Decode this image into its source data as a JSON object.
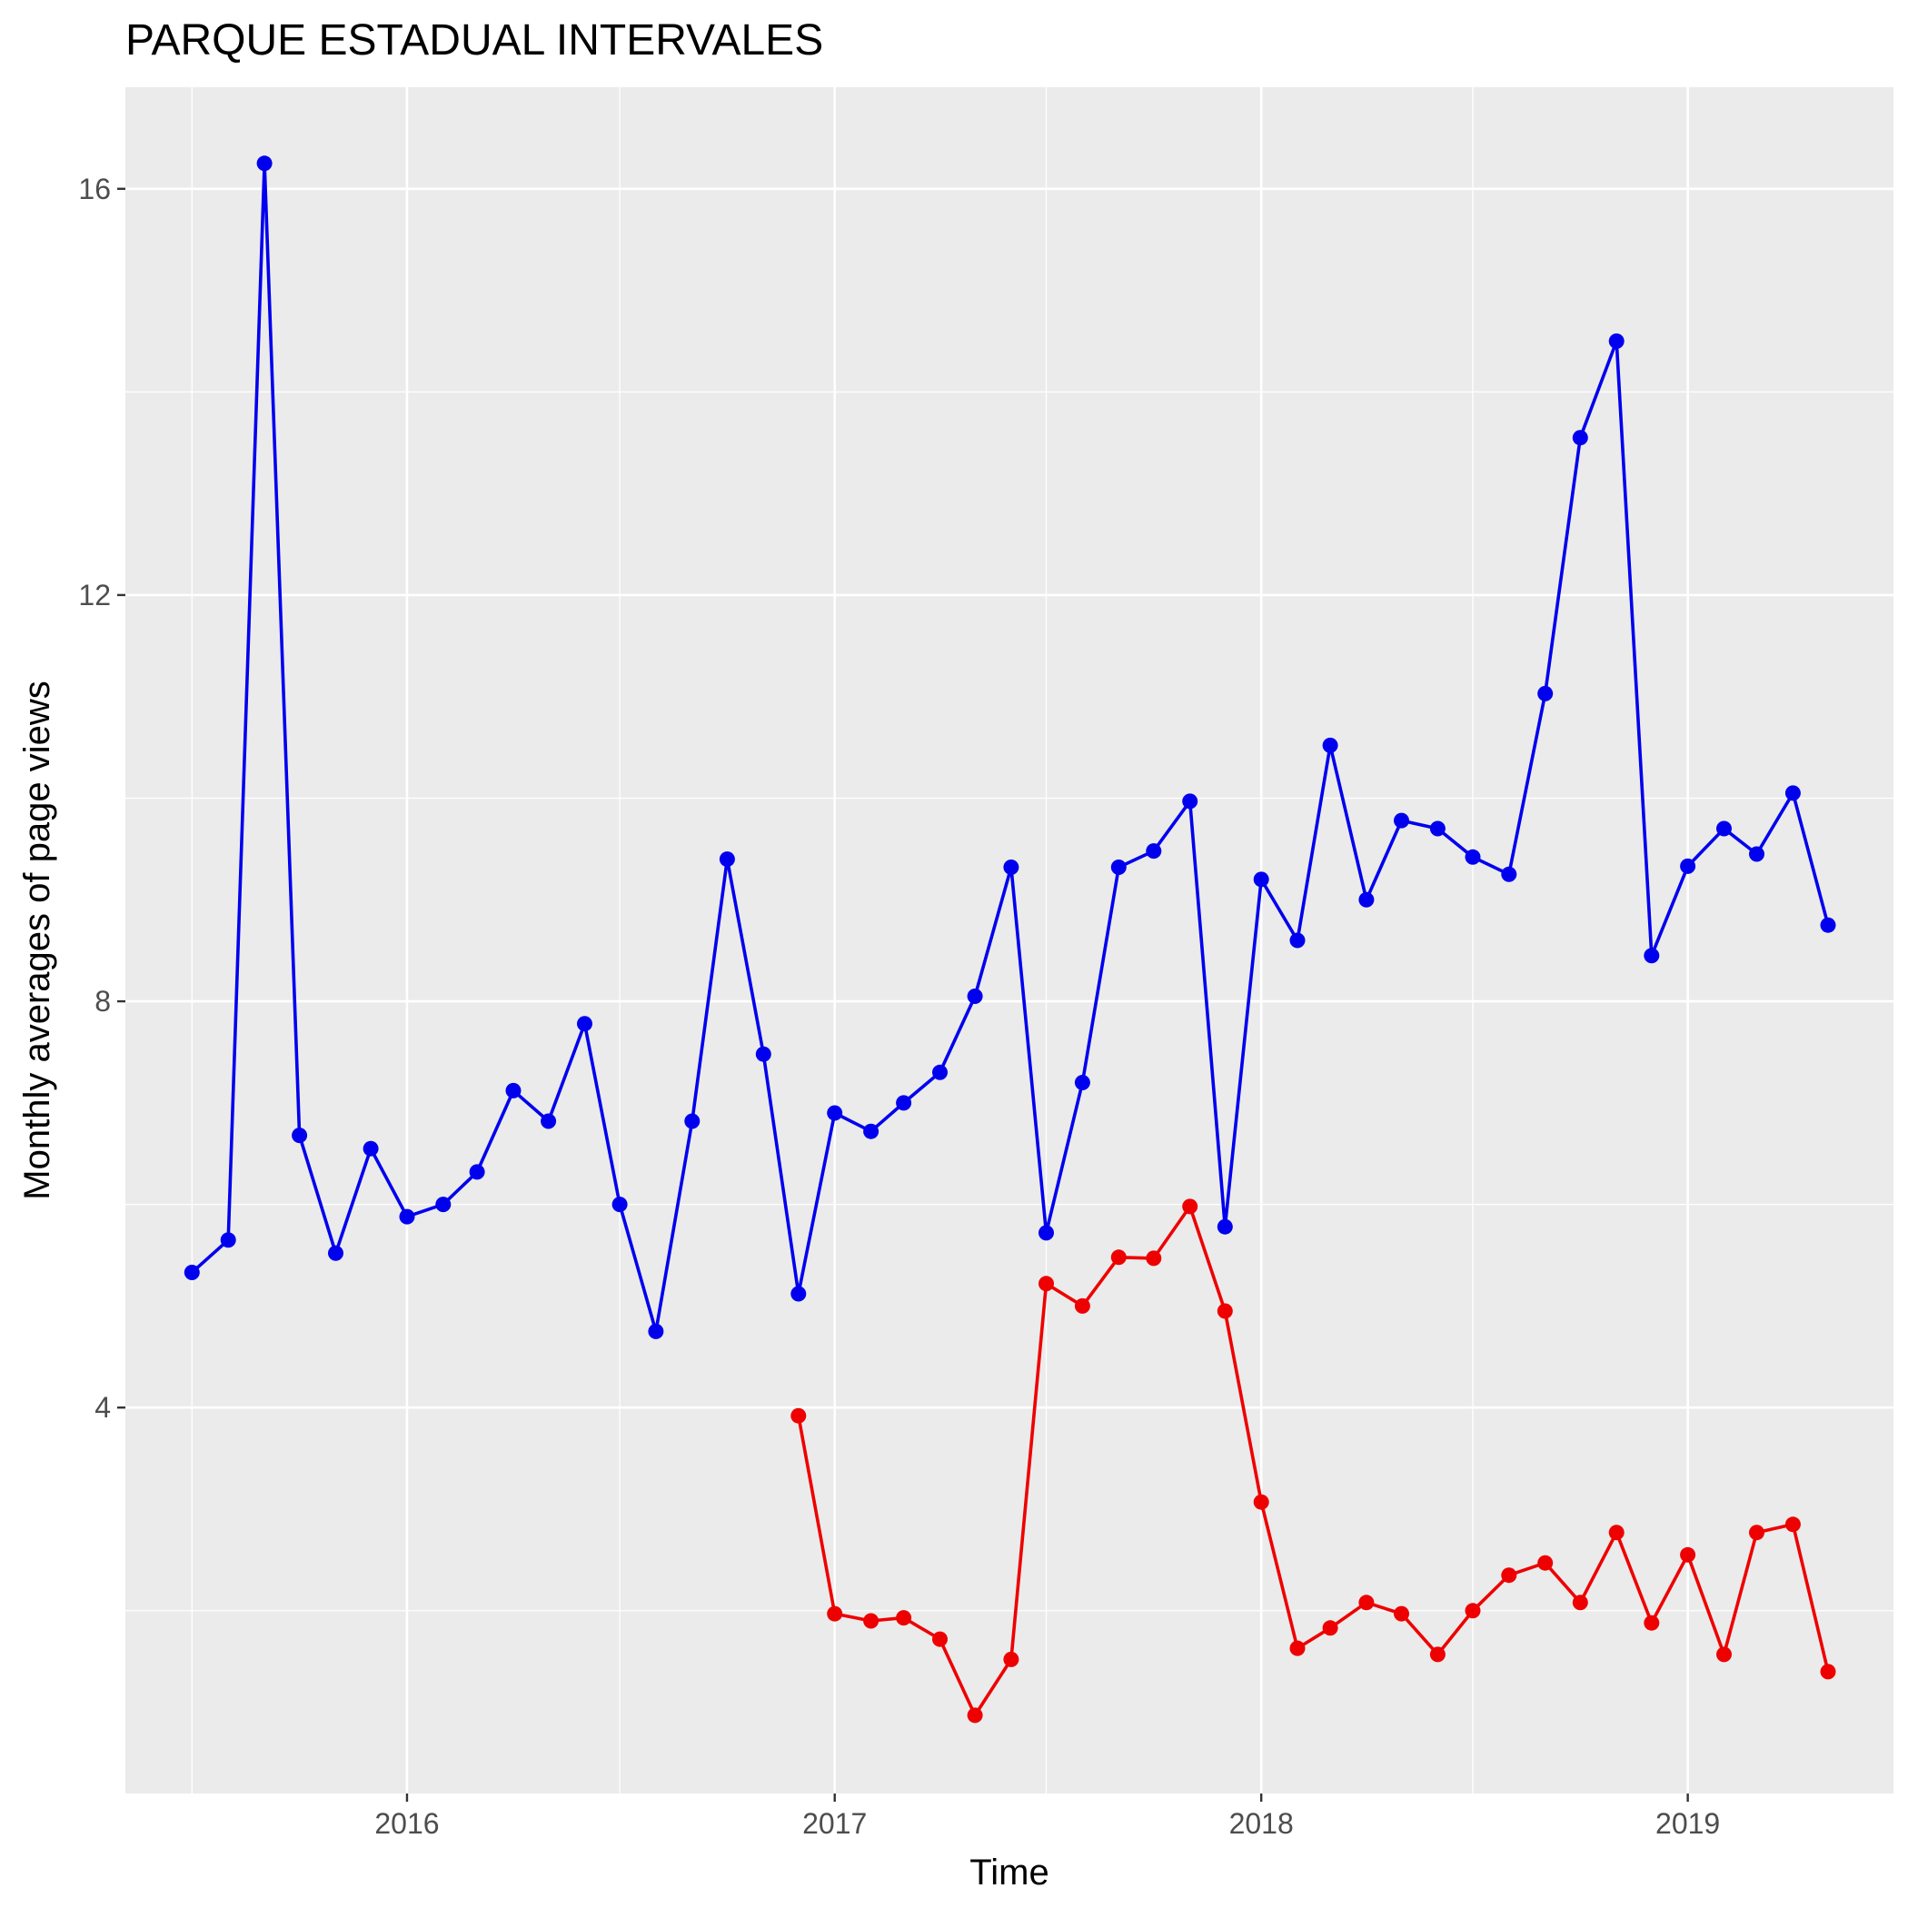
{
  "chart_data": {
    "type": "line",
    "title": "PARQUE ESTADUAL INTERVALES",
    "xlabel": "Time",
    "ylabel": "Monthly averages of page views",
    "x_ticks": [
      "2016",
      "2017",
      "2018",
      "2019"
    ],
    "y_ticks": [
      "4",
      "8",
      "12",
      "16"
    ],
    "x_range": [
      "2015-05-05",
      "2019-06-26"
    ],
    "ylim": [
      0.2,
      17.0
    ],
    "grid": true,
    "legend": "none",
    "colors": {
      "panel": "#ebebeb",
      "grid": "#ffffff",
      "axis_text": "#4d4d4d"
    },
    "series": [
      {
        "color": "#0000ee",
        "x": [
          "2015-07-01",
          "2015-08-01",
          "2015-09-01",
          "2015-10-01",
          "2015-11-01",
          "2015-12-01",
          "2016-01-01",
          "2016-02-01",
          "2016-03-01",
          "2016-04-01",
          "2016-05-01",
          "2016-06-01",
          "2016-07-01",
          "2016-08-01",
          "2016-09-01",
          "2016-10-01",
          "2016-11-01",
          "2016-12-01",
          "2017-01-01",
          "2017-02-01",
          "2017-03-01",
          "2017-04-01",
          "2017-05-01",
          "2017-06-01",
          "2017-07-01",
          "2017-08-01",
          "2017-09-01",
          "2017-10-01",
          "2017-11-01",
          "2017-12-01",
          "2018-01-01",
          "2018-02-01",
          "2018-03-01",
          "2018-04-01",
          "2018-05-01",
          "2018-06-01",
          "2018-07-01",
          "2018-08-01",
          "2018-09-01",
          "2018-10-01",
          "2018-11-01",
          "2018-12-01",
          "2019-01-01",
          "2019-02-01",
          "2019-03-01",
          "2019-04-01",
          "2019-05-01"
        ],
        "values": [
          5.33,
          5.65,
          16.25,
          6.68,
          5.52,
          6.55,
          5.88,
          6.0,
          6.32,
          7.12,
          6.82,
          7.78,
          6.0,
          4.75,
          6.82,
          9.4,
          7.48,
          5.12,
          6.9,
          6.72,
          7.0,
          7.3,
          8.05,
          9.32,
          5.72,
          7.2,
          9.32,
          9.48,
          9.97,
          5.78,
          9.2,
          8.6,
          10.52,
          9.0,
          9.78,
          9.7,
          9.42,
          9.25,
          11.03,
          13.55,
          14.5,
          8.45,
          9.33,
          9.7,
          9.45,
          10.05,
          8.75
        ]
      },
      {
        "color": "#ee0000",
        "x": [
          "2016-12-01",
          "2017-01-01",
          "2017-02-01",
          "2017-03-01",
          "2017-04-01",
          "2017-05-01",
          "2017-06-01",
          "2017-07-01",
          "2017-08-01",
          "2017-09-01",
          "2017-10-01",
          "2017-11-01",
          "2017-12-01",
          "2018-01-01",
          "2018-02-01",
          "2018-03-01",
          "2018-04-01",
          "2018-05-01",
          "2018-06-01",
          "2018-07-01",
          "2018-08-01",
          "2018-09-01",
          "2018-10-01",
          "2018-11-01",
          "2018-12-01",
          "2019-01-01",
          "2019-02-01",
          "2019-03-01",
          "2019-04-01",
          "2019-05-01"
        ],
        "values": [
          3.92,
          1.97,
          1.9,
          1.93,
          1.72,
          0.97,
          1.52,
          5.22,
          5.0,
          5.48,
          5.47,
          5.98,
          4.95,
          3.07,
          1.63,
          1.83,
          2.08,
          1.97,
          1.57,
          2.0,
          2.35,
          2.47,
          2.08,
          2.77,
          1.88,
          2.55,
          1.57,
          2.77,
          2.85,
          1.4
        ]
      }
    ]
  }
}
